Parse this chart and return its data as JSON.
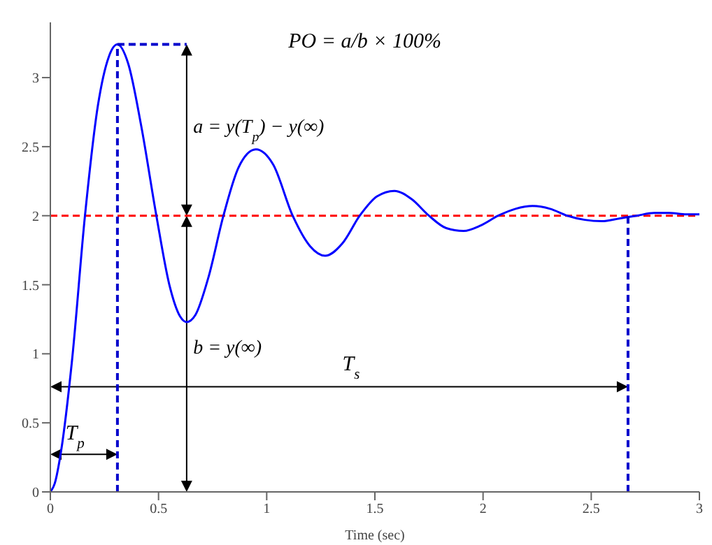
{
  "chart_data": {
    "type": "line",
    "xlabel": "Time (sec)",
    "xlim": [
      0,
      3
    ],
    "xticks": [
      0,
      0.5,
      1,
      1.5,
      2,
      2.5,
      3
    ],
    "ylim": [
      0,
      3.4
    ],
    "yticks": [
      0,
      0.5,
      1,
      1.5,
      2,
      2.5,
      3
    ],
    "line_style": "solid",
    "series": [
      {
        "color": "#0000ff",
        "x": [
          0,
          0.02,
          0.05,
          0.1,
          0.16,
          0.22,
          0.27,
          0.31,
          0.36,
          0.42,
          0.49,
          0.55,
          0.6,
          0.63,
          0.67,
          0.73,
          0.8,
          0.87,
          0.95,
          1.03,
          1.12,
          1.2,
          1.27,
          1.35,
          1.43,
          1.51,
          1.59,
          1.67,
          1.75,
          1.83,
          1.91,
          1.99,
          2.07,
          2.15,
          2.23,
          2.31,
          2.39,
          2.47,
          2.55,
          2.63,
          2.71,
          2.79,
          2.86,
          2.94,
          3.0
        ],
        "values": [
          0,
          0.06,
          0.3,
          0.95,
          2.0,
          2.8,
          3.15,
          3.24,
          3.1,
          2.65,
          2.0,
          1.5,
          1.27,
          1.23,
          1.28,
          1.55,
          2.0,
          2.35,
          2.48,
          2.37,
          2.0,
          1.78,
          1.71,
          1.8,
          2.0,
          2.14,
          2.18,
          2.12,
          2.0,
          1.91,
          1.89,
          1.93,
          2.0,
          2.05,
          2.07,
          2.05,
          2.0,
          1.97,
          1.96,
          1.98,
          2.0,
          2.02,
          2.02,
          2.01,
          2.01
        ]
      },
      {
        "color": "#0000cc",
        "line_style": "dashed",
        "x": [
          0.31,
          0.31
        ],
        "values": [
          0,
          3.24
        ]
      },
      {
        "color": "#0000cc",
        "line_style": "dashed",
        "x": [
          0.31,
          0.63
        ],
        "values": [
          3.24,
          3.24
        ]
      },
      {
        "color": "#0000cc",
        "line_style": "dashed",
        "x": [
          2.67,
          2.67
        ],
        "values": [
          0,
          2.0
        ]
      }
    ],
    "ref_lines": [
      {
        "axis": "y",
        "value": 2,
        "color": "#ff0000",
        "line_style": "dashed"
      }
    ],
    "annotations": [
      "PO = a/b × 100%",
      "a = y(T$_{p}$) − y(∞)",
      "b = y(∞)",
      "T$_{s}$",
      "T$_{p}$"
    ]
  }
}
